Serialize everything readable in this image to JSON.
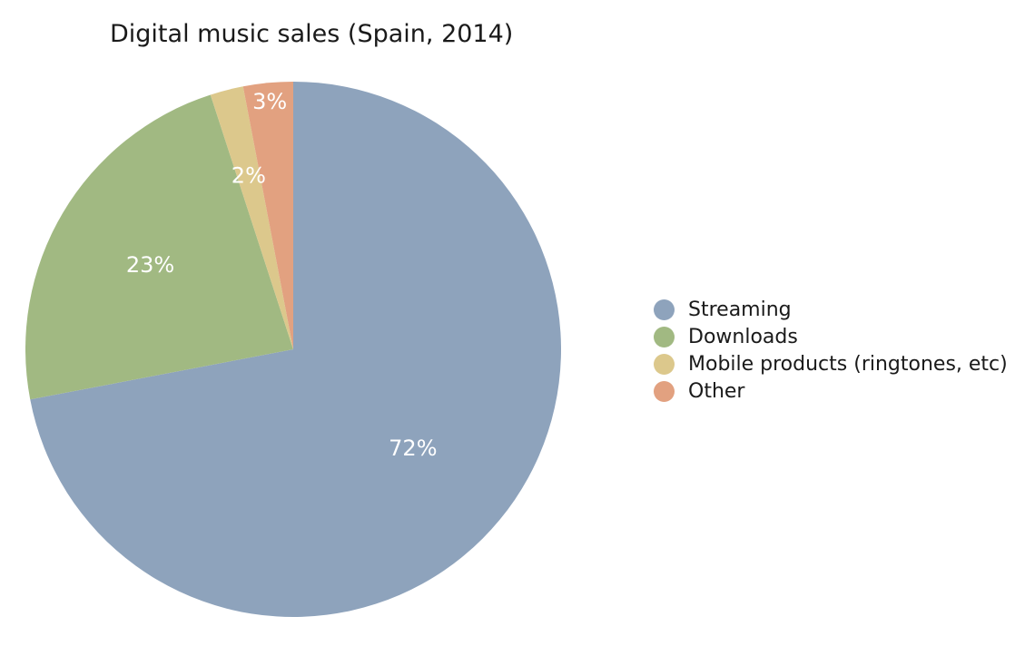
{
  "chart_data": {
    "type": "pie",
    "title": "Digital music sales (Spain, 2014)",
    "legend_position": "right",
    "slices": [
      {
        "name": "Streaming",
        "value": 72,
        "label": "72%",
        "color": "#8ea3bc"
      },
      {
        "name": "Downloads",
        "value": 23,
        "label": "23%",
        "color": "#a1b982"
      },
      {
        "name": "Mobile products (ringtones, etc)",
        "value": 2,
        "label": "2%",
        "color": "#dcc88c"
      },
      {
        "name": "Other",
        "value": 3,
        "label": "3%",
        "color": "#e2a180"
      }
    ]
  }
}
